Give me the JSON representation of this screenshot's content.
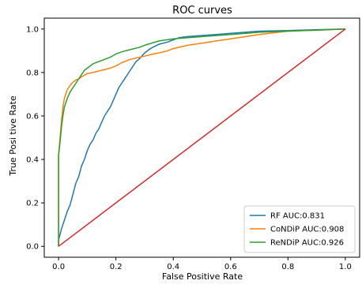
{
  "chart_data": {
    "type": "line",
    "title": "ROC curves",
    "xlabel": "False Positive Rate",
    "ylabel": "True Posi tive Rate",
    "xlim": [
      -0.05,
      1.05
    ],
    "ylim": [
      -0.05,
      1.05
    ],
    "xticks": [
      0.0,
      0.2,
      0.4,
      0.6,
      0.8,
      1.0
    ],
    "yticks": [
      0.0,
      0.2,
      0.4,
      0.6,
      0.8,
      1.0
    ],
    "xtick_labels": [
      "0.0",
      "0.2",
      "0.4",
      "0.6",
      "0.8",
      "1.0"
    ],
    "ytick_labels": [
      "0.0",
      "0.2",
      "0.4",
      "0.6",
      "0.8",
      "1.0"
    ],
    "grid": false,
    "legend_position": "lower-right",
    "series": [
      {
        "name": "RF AUC:0.831",
        "color": "#1f77b4",
        "x": [
          0.0,
          0.0,
          0.01,
          0.02,
          0.03,
          0.04,
          0.05,
          0.06,
          0.07,
          0.08,
          0.09,
          0.1,
          0.11,
          0.12,
          0.13,
          0.14,
          0.15,
          0.16,
          0.17,
          0.18,
          0.19,
          0.2,
          0.21,
          0.22,
          0.23,
          0.24,
          0.25,
          0.26,
          0.27,
          0.28,
          0.3,
          0.32,
          0.35,
          0.38,
          0.4,
          0.42,
          0.45,
          0.5,
          0.55,
          0.6,
          0.65,
          0.7,
          0.8,
          0.9,
          1.0
        ],
        "y": [
          0.0,
          0.03,
          0.08,
          0.12,
          0.16,
          0.19,
          0.24,
          0.29,
          0.32,
          0.37,
          0.4,
          0.44,
          0.47,
          0.49,
          0.52,
          0.54,
          0.57,
          0.6,
          0.62,
          0.64,
          0.67,
          0.7,
          0.73,
          0.75,
          0.77,
          0.79,
          0.81,
          0.83,
          0.85,
          0.86,
          0.89,
          0.91,
          0.93,
          0.94,
          0.95,
          0.96,
          0.965,
          0.97,
          0.975,
          0.98,
          0.985,
          0.99,
          0.993,
          0.997,
          1.0
        ]
      },
      {
        "name": "CoNDiP AUC:0.908",
        "color": "#ff7f0e",
        "x": [
          0.0,
          0.0,
          0.005,
          0.01,
          0.015,
          0.02,
          0.03,
          0.04,
          0.05,
          0.06,
          0.07,
          0.08,
          0.1,
          0.12,
          0.15,
          0.18,
          0.2,
          0.22,
          0.25,
          0.28,
          0.3,
          0.33,
          0.35,
          0.38,
          0.4,
          0.45,
          0.5,
          0.55,
          0.6,
          0.7,
          0.8,
          0.9,
          1.0
        ],
        "y": [
          0.0,
          0.42,
          0.5,
          0.58,
          0.64,
          0.68,
          0.72,
          0.74,
          0.755,
          0.765,
          0.77,
          0.78,
          0.795,
          0.8,
          0.81,
          0.82,
          0.83,
          0.845,
          0.86,
          0.87,
          0.875,
          0.885,
          0.89,
          0.9,
          0.91,
          0.925,
          0.935,
          0.945,
          0.955,
          0.975,
          0.99,
          0.995,
          1.0
        ]
      },
      {
        "name": "ReNDiP AUC:0.926",
        "color": "#2ca02c",
        "x": [
          0.0,
          0.0,
          0.005,
          0.01,
          0.015,
          0.02,
          0.03,
          0.04,
          0.05,
          0.06,
          0.07,
          0.08,
          0.09,
          0.1,
          0.12,
          0.14,
          0.16,
          0.18,
          0.2,
          0.22,
          0.25,
          0.28,
          0.3,
          0.35,
          0.4,
          0.45,
          0.5,
          0.6,
          0.7,
          0.8,
          0.9,
          1.0
        ],
        "y": [
          0.0,
          0.42,
          0.48,
          0.55,
          0.6,
          0.64,
          0.68,
          0.71,
          0.73,
          0.75,
          0.77,
          0.79,
          0.81,
          0.82,
          0.84,
          0.85,
          0.86,
          0.87,
          0.885,
          0.895,
          0.905,
          0.915,
          0.925,
          0.945,
          0.955,
          0.96,
          0.965,
          0.975,
          0.985,
          0.99,
          0.995,
          1.0
        ]
      },
      {
        "name": "",
        "color": "#d62728",
        "x": [
          0.0,
          1.0
        ],
        "y": [
          0.0,
          1.0
        ]
      }
    ]
  }
}
